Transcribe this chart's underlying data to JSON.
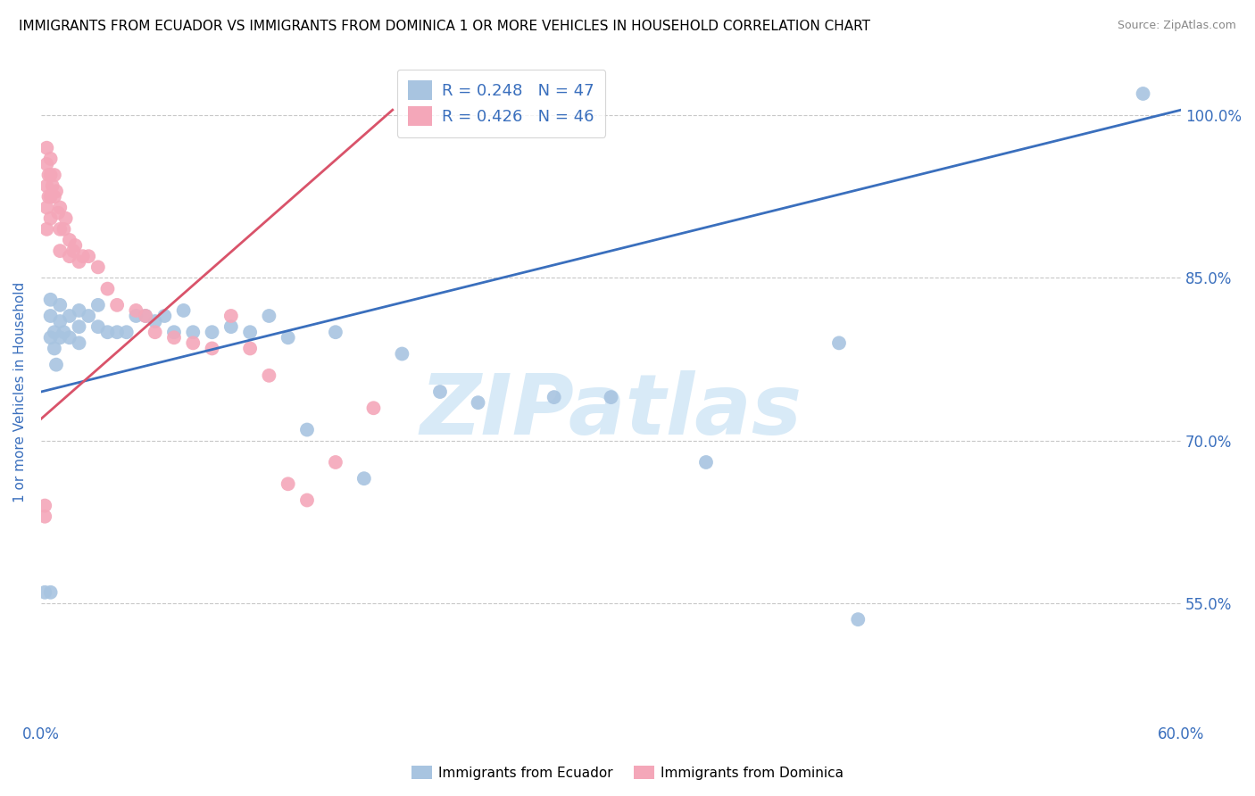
{
  "title": "IMMIGRANTS FROM ECUADOR VS IMMIGRANTS FROM DOMINICA 1 OR MORE VEHICLES IN HOUSEHOLD CORRELATION CHART",
  "source": "Source: ZipAtlas.com",
  "ylabel": "1 or more Vehicles in Household",
  "xlim": [
    0.0,
    0.6
  ],
  "ylim": [
    0.44,
    1.05
  ],
  "yticks": [
    0.55,
    0.7,
    0.85,
    1.0
  ],
  "ytick_labels": [
    "55.0%",
    "70.0%",
    "85.0%",
    "100.0%"
  ],
  "xticks": [
    0.0,
    0.1,
    0.2,
    0.3,
    0.4,
    0.5,
    0.6
  ],
  "xtick_labels": [
    "0.0%",
    "",
    "",
    "",
    "",
    "",
    "60.0%"
  ],
  "ecuador_R": 0.248,
  "ecuador_N": 47,
  "dominica_R": 0.426,
  "dominica_N": 46,
  "ecuador_color": "#a8c4e0",
  "dominica_color": "#f4a7b9",
  "ecuador_line_color": "#3a6fbd",
  "dominica_line_color": "#d9536a",
  "ecuador_line_x": [
    0.0,
    0.6
  ],
  "ecuador_line_y": [
    0.745,
    1.005
  ],
  "dominica_line_x": [
    0.0,
    0.185
  ],
  "dominica_line_y": [
    0.72,
    1.005
  ],
  "watermark": "ZIPatlas",
  "watermark_color": "#d8eaf7",
  "title_fontsize": 11,
  "source_fontsize": 9,
  "axis_label_color": "#3a6fbd",
  "tick_label_color": "#3a6fbd",
  "legend_color": "#3a6fbd",
  "ecuador_x": [
    0.005,
    0.005,
    0.005,
    0.007,
    0.007,
    0.008,
    0.01,
    0.01,
    0.01,
    0.012,
    0.015,
    0.015,
    0.02,
    0.02,
    0.02,
    0.025,
    0.03,
    0.03,
    0.035,
    0.04,
    0.045,
    0.05,
    0.055,
    0.06,
    0.065,
    0.07,
    0.075,
    0.08,
    0.09,
    0.1,
    0.11,
    0.12,
    0.13,
    0.14,
    0.155,
    0.17,
    0.19,
    0.21,
    0.23,
    0.27,
    0.3,
    0.35,
    0.42,
    0.43,
    0.58,
    0.005,
    0.002
  ],
  "ecuador_y": [
    0.795,
    0.815,
    0.83,
    0.8,
    0.785,
    0.77,
    0.81,
    0.795,
    0.825,
    0.8,
    0.795,
    0.815,
    0.805,
    0.82,
    0.79,
    0.815,
    0.805,
    0.825,
    0.8,
    0.8,
    0.8,
    0.815,
    0.815,
    0.81,
    0.815,
    0.8,
    0.82,
    0.8,
    0.8,
    0.805,
    0.8,
    0.815,
    0.795,
    0.71,
    0.8,
    0.665,
    0.78,
    0.745,
    0.735,
    0.74,
    0.74,
    0.68,
    0.79,
    0.535,
    1.02,
    0.56,
    0.56
  ],
  "dominica_x": [
    0.003,
    0.003,
    0.003,
    0.003,
    0.003,
    0.004,
    0.004,
    0.005,
    0.005,
    0.005,
    0.005,
    0.006,
    0.007,
    0.007,
    0.008,
    0.009,
    0.01,
    0.01,
    0.01,
    0.012,
    0.013,
    0.015,
    0.015,
    0.017,
    0.018,
    0.02,
    0.022,
    0.025,
    0.03,
    0.035,
    0.04,
    0.05,
    0.055,
    0.06,
    0.07,
    0.08,
    0.09,
    0.1,
    0.11,
    0.12,
    0.13,
    0.14,
    0.155,
    0.175,
    0.002,
    0.002
  ],
  "dominica_y": [
    0.97,
    0.955,
    0.935,
    0.915,
    0.895,
    0.945,
    0.925,
    0.96,
    0.945,
    0.925,
    0.905,
    0.935,
    0.945,
    0.925,
    0.93,
    0.91,
    0.915,
    0.895,
    0.875,
    0.895,
    0.905,
    0.885,
    0.87,
    0.875,
    0.88,
    0.865,
    0.87,
    0.87,
    0.86,
    0.84,
    0.825,
    0.82,
    0.815,
    0.8,
    0.795,
    0.79,
    0.785,
    0.815,
    0.785,
    0.76,
    0.66,
    0.645,
    0.68,
    0.73,
    0.63,
    0.64
  ],
  "background_color": "#ffffff",
  "grid_color": "#c8c8c8"
}
